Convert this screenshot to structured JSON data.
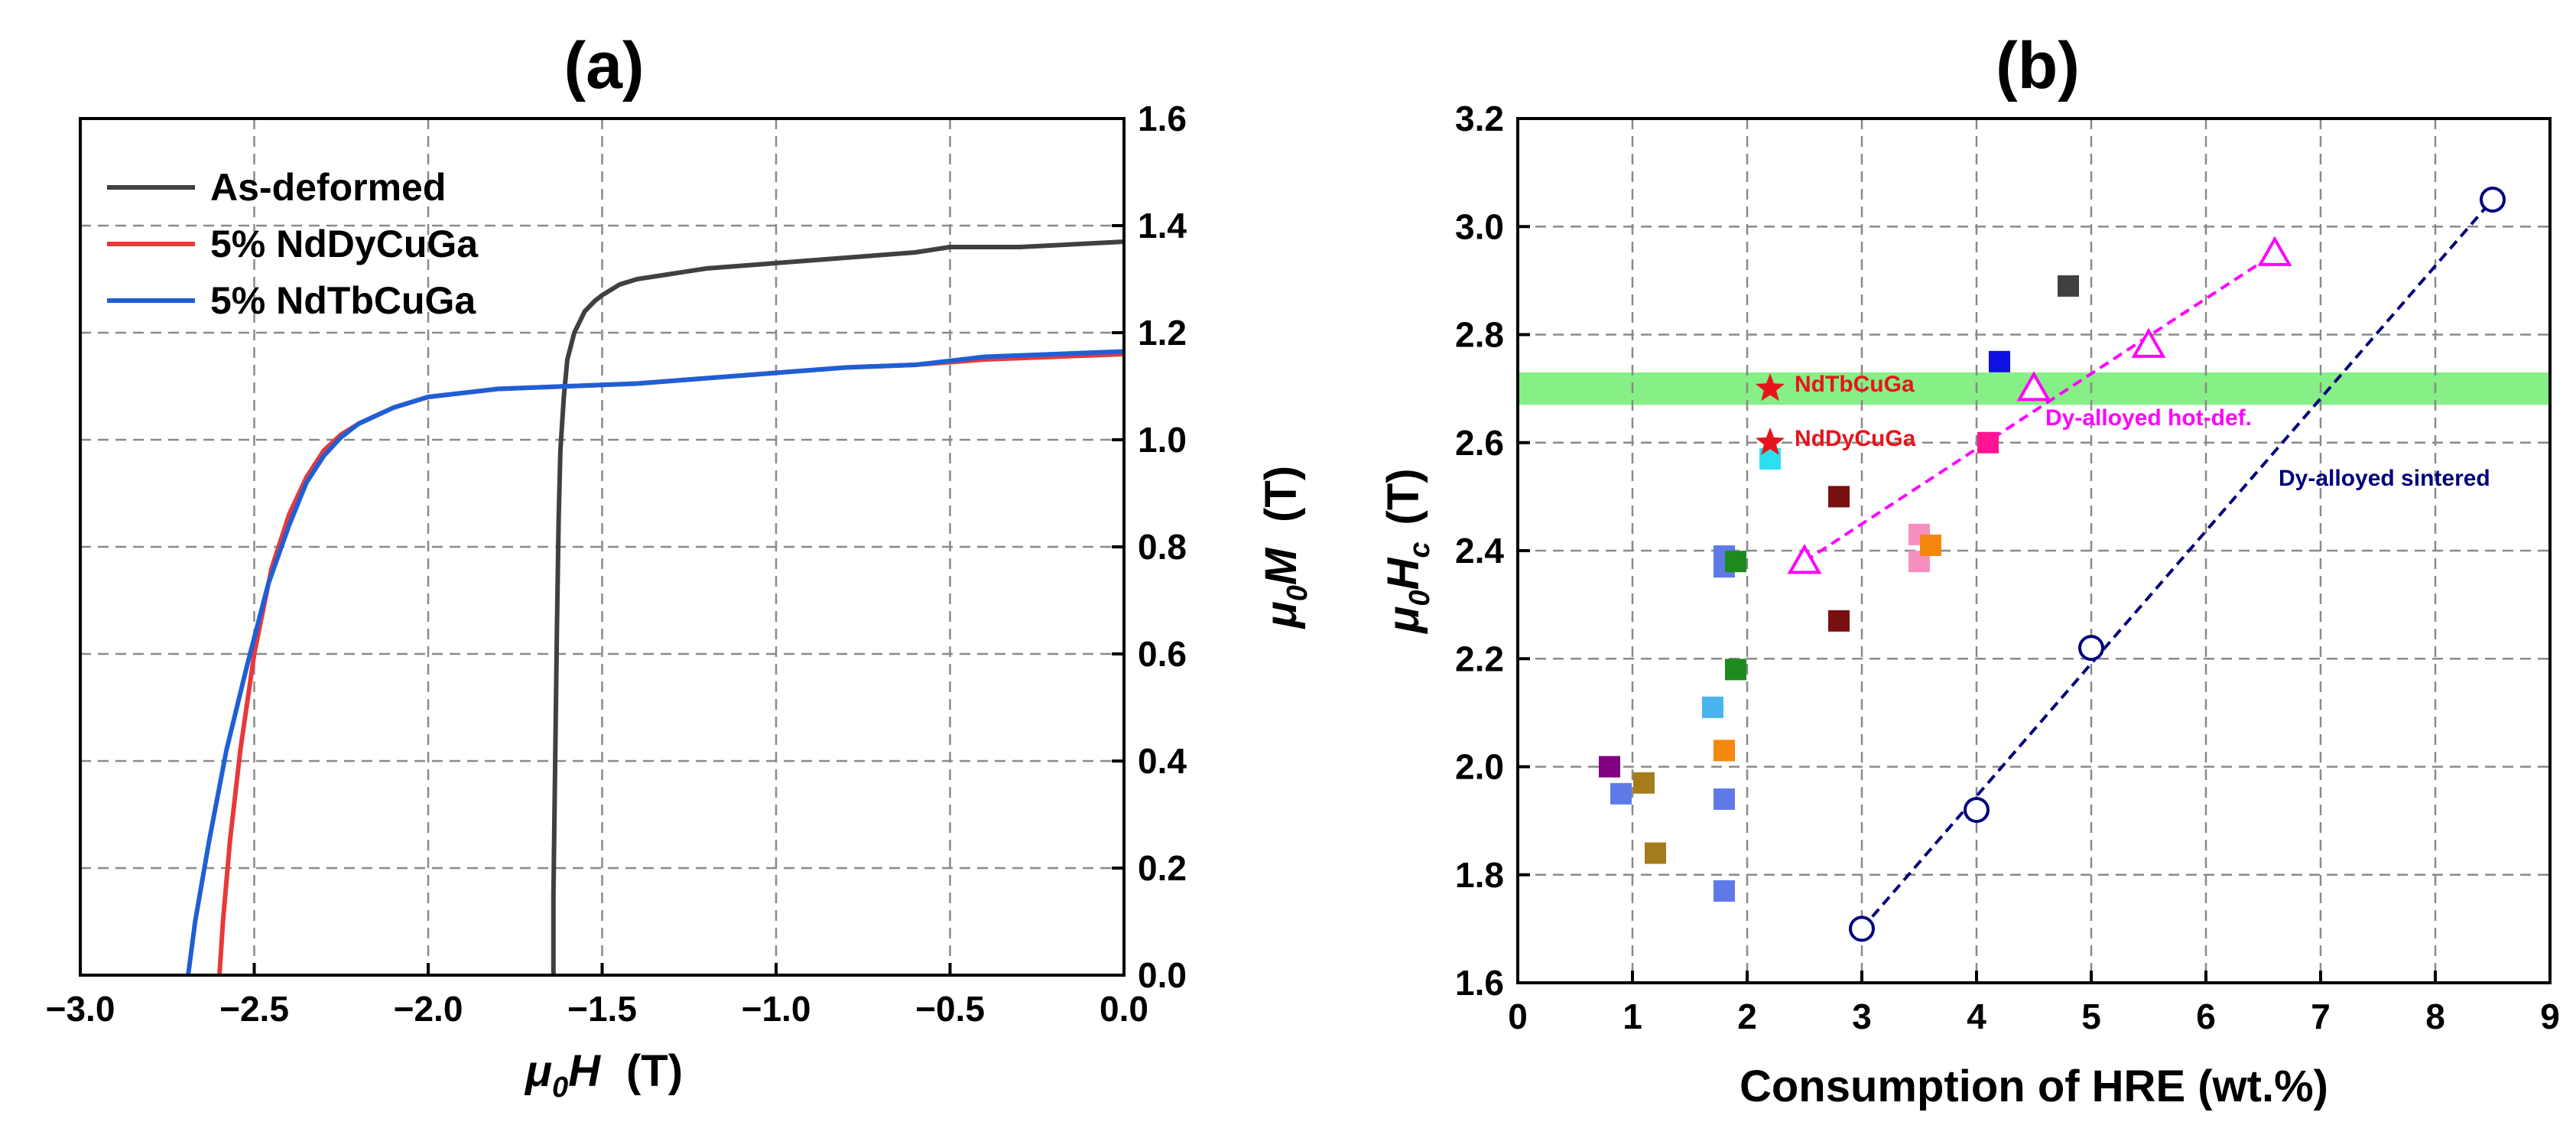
{
  "chart_data": [
    {
      "panel": "(a)",
      "type": "line",
      "xlabel_mu": "μ",
      "xlabel_sub": "0",
      "xlabel_var": "H",
      "xlabel_unit": "(T)",
      "ylabel_mu": "μ",
      "ylabel_sub": "0",
      "ylabel_var": "M",
      "ylabel_unit": "(T)",
      "xlim": [
        -3.0,
        0.0
      ],
      "ylim": [
        0.0,
        1.6
      ],
      "xticks": [
        -3.0,
        -2.5,
        -2.0,
        -1.5,
        -1.0,
        -0.5,
        0.0
      ],
      "xtick_labels": [
        "−3.0",
        "−2.5",
        "−2.0",
        "−1.5",
        "−1.0",
        "−0.5",
        "0.0"
      ],
      "yticks": [
        0.0,
        0.2,
        0.4,
        0.6,
        0.8,
        1.0,
        1.2,
        1.4,
        1.6
      ],
      "ytick_labels": [
        "0.0",
        "0.2",
        "0.4",
        "0.6",
        "0.8",
        "1.0",
        "1.2",
        "1.4",
        "1.6"
      ],
      "y_axis_side": "right",
      "grid": true,
      "legend_position": "top-left",
      "series": [
        {
          "name": "As-deformed",
          "color": "#404040",
          "x": [
            -1.64,
            -1.64,
            -1.635,
            -1.63,
            -1.625,
            -1.62,
            -1.61,
            -1.6,
            -1.58,
            -1.55,
            -1.52,
            -1.5,
            -1.45,
            -1.4,
            -1.3,
            -1.2,
            -1.0,
            -0.8,
            -0.6,
            -0.5,
            -0.3,
            0.0
          ],
          "y": [
            0.0,
            0.15,
            0.4,
            0.65,
            0.85,
            0.98,
            1.08,
            1.15,
            1.2,
            1.24,
            1.26,
            1.27,
            1.29,
            1.3,
            1.31,
            1.32,
            1.33,
            1.34,
            1.35,
            1.36,
            1.36,
            1.37
          ]
        },
        {
          "name": "5% NdDyCuGa",
          "color": "#e8393a",
          "x": [
            -2.6,
            -2.59,
            -2.57,
            -2.54,
            -2.5,
            -2.45,
            -2.4,
            -2.35,
            -2.3,
            -2.25,
            -2.2,
            -2.1,
            -2.0,
            -1.8,
            -1.6,
            -1.4,
            -1.2,
            -1.0,
            -0.8,
            -0.6,
            -0.4,
            -0.2,
            0.0
          ],
          "y": [
            0.0,
            0.1,
            0.25,
            0.42,
            0.6,
            0.76,
            0.86,
            0.93,
            0.98,
            1.01,
            1.03,
            1.06,
            1.08,
            1.095,
            1.1,
            1.105,
            1.115,
            1.125,
            1.135,
            1.14,
            1.15,
            1.155,
            1.16
          ]
        },
        {
          "name": "5% NdTbCuGa",
          "color": "#1f5fd6",
          "x": [
            -2.69,
            -2.67,
            -2.63,
            -2.58,
            -2.52,
            -2.46,
            -2.4,
            -2.35,
            -2.3,
            -2.25,
            -2.2,
            -2.1,
            -2.0,
            -1.8,
            -1.6,
            -1.4,
            -1.2,
            -1.0,
            -0.8,
            -0.6,
            -0.4,
            -0.2,
            0.0
          ],
          "y": [
            0.0,
            0.1,
            0.25,
            0.42,
            0.58,
            0.73,
            0.84,
            0.92,
            0.97,
            1.005,
            1.03,
            1.06,
            1.08,
            1.095,
            1.1,
            1.105,
            1.115,
            1.125,
            1.135,
            1.14,
            1.155,
            1.16,
            1.165
          ]
        }
      ]
    },
    {
      "panel": "(b)",
      "type": "scatter",
      "xlabel": "Consumption of HRE (wt.%)",
      "ylabel_mu": "μ",
      "ylabel_sub0": "0",
      "ylabel_var": "H",
      "ylabel_subc": "c",
      "ylabel_unit": "(T)",
      "xlim": [
        0,
        9
      ],
      "ylim": [
        1.6,
        3.2
      ],
      "xticks": [
        0,
        1,
        2,
        3,
        4,
        5,
        6,
        7,
        8,
        9
      ],
      "xtick_labels": [
        "0",
        "1",
        "2",
        "3",
        "4",
        "5",
        "6",
        "7",
        "8",
        "9"
      ],
      "yticks": [
        1.6,
        1.8,
        2.0,
        2.2,
        2.4,
        2.6,
        2.8,
        3.0,
        3.2
      ],
      "ytick_labels": [
        "1.6",
        "1.8",
        "2.0",
        "2.2",
        "2.4",
        "2.6",
        "2.8",
        "3.0",
        "3.2"
      ],
      "grid": true,
      "band": {
        "y_from": 2.67,
        "y_to": 2.73,
        "color": "#86ef86"
      },
      "square_points": [
        {
          "x": 0.8,
          "y": 2.0,
          "color": "#800080"
        },
        {
          "x": 0.9,
          "y": 1.95,
          "color": "#5f7ae8"
        },
        {
          "x": 1.1,
          "y": 1.97,
          "color": "#a57c1b"
        },
        {
          "x": 1.2,
          "y": 1.84,
          "color": "#a57c1b"
        },
        {
          "x": 1.7,
          "y": 2.11,
          "color": "#49b3f0"
        },
        {
          "x": 1.8,
          "y": 2.03,
          "color": "#f5870e"
        },
        {
          "x": 1.8,
          "y": 1.94,
          "color": "#5f7ae8"
        },
        {
          "x": 1.8,
          "y": 1.77,
          "color": "#5f7ae8"
        },
        {
          "x": 1.8,
          "y": 2.39,
          "color": "#5f7ae8"
        },
        {
          "x": 1.8,
          "y": 2.37,
          "color": "#5f7ae8"
        },
        {
          "x": 1.9,
          "y": 2.38,
          "color": "#1e8a1e"
        },
        {
          "x": 1.9,
          "y": 2.18,
          "color": "#1e8a1e"
        },
        {
          "x": 2.2,
          "y": 2.57,
          "color": "#2de0f0"
        },
        {
          "x": 2.8,
          "y": 2.5,
          "color": "#7a0f12"
        },
        {
          "x": 2.8,
          "y": 2.27,
          "color": "#7a0f12"
        },
        {
          "x": 3.5,
          "y": 2.43,
          "color": "#f78fc0"
        },
        {
          "x": 3.5,
          "y": 2.38,
          "color": "#f78fc0"
        },
        {
          "x": 3.6,
          "y": 2.41,
          "color": "#f5870e"
        },
        {
          "x": 4.1,
          "y": 2.6,
          "color": "#ff1493"
        },
        {
          "x": 4.2,
          "y": 2.75,
          "color": "#1010e0"
        },
        {
          "x": 4.8,
          "y": 2.89,
          "color": "#404040"
        }
      ],
      "stars": [
        {
          "label": "NdTbCuGa",
          "x": 2.2,
          "y": 2.7,
          "color": "#e8141b"
        },
        {
          "label": "NdDyCuGa",
          "x": 2.2,
          "y": 2.6,
          "color": "#e8141b"
        }
      ],
      "series": [
        {
          "name": "Dy-alloyed hot-def.",
          "marker": "triangle",
          "color": "#ff00ff",
          "x": [
            2.5,
            4.5,
            5.5,
            6.6
          ],
          "y": [
            2.38,
            2.7,
            2.78,
            2.95
          ]
        },
        {
          "name": "Dy-alloyed sintered",
          "marker": "circle",
          "color": "#00007a",
          "x": [
            3.0,
            4.0,
            5.0,
            8.5
          ],
          "y": [
            1.7,
            1.92,
            2.22,
            3.05
          ]
        }
      ]
    }
  ]
}
